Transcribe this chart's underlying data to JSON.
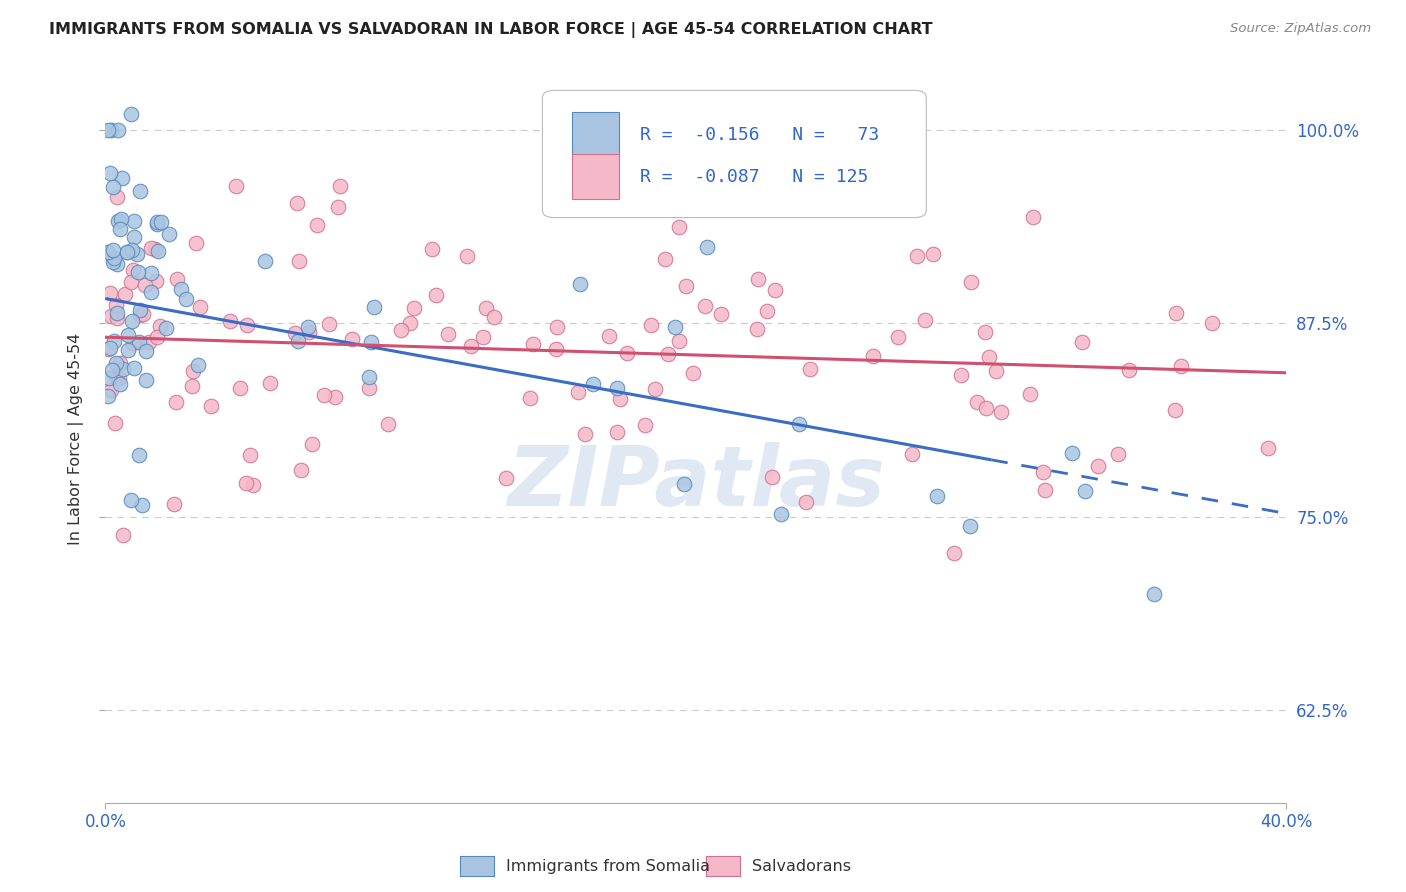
{
  "title": "IMMIGRANTS FROM SOMALIA VS SALVADORAN IN LABOR FORCE | AGE 45-54 CORRELATION CHART",
  "source": "Source: ZipAtlas.com",
  "ylabel": "In Labor Force | Age 45-54",
  "ytick_labels": [
    "62.5%",
    "75.0%",
    "87.5%",
    "100.0%"
  ],
  "ytick_values": [
    0.625,
    0.75,
    0.875,
    1.0
  ],
  "xmin": 0.0,
  "xmax": 0.4,
  "ymin": 0.565,
  "ymax": 1.035,
  "legend_val1": "-0.156",
  "legend_nval1": "73",
  "legend_val2": "-0.087",
  "legend_nval2": "125",
  "somalia_color": "#aac5e2",
  "somalia_edge": "#5588bb",
  "salvadoran_color": "#f5b8c8",
  "salvadoran_edge": "#d07090",
  "trend_somalia_color": "#3a6cc8",
  "trend_salvadoran_color": "#d05070",
  "watermark": "ZIPatlas",
  "background_color": "#ffffff",
  "grid_color": "#cccccc",
  "label_color_blue": "#3366cc",
  "somalia_label": "Immigrants from Somalia",
  "salvadoran_label": "Salvadorans",
  "trend_som_x0": 0.0,
  "trend_som_y0": 0.891,
  "trend_som_x1": 0.4,
  "trend_som_y1": 0.752,
  "trend_som_solid_end": 0.3,
  "trend_sal_x0": 0.0,
  "trend_sal_y0": 0.866,
  "trend_sal_x1": 0.4,
  "trend_sal_y1": 0.843
}
